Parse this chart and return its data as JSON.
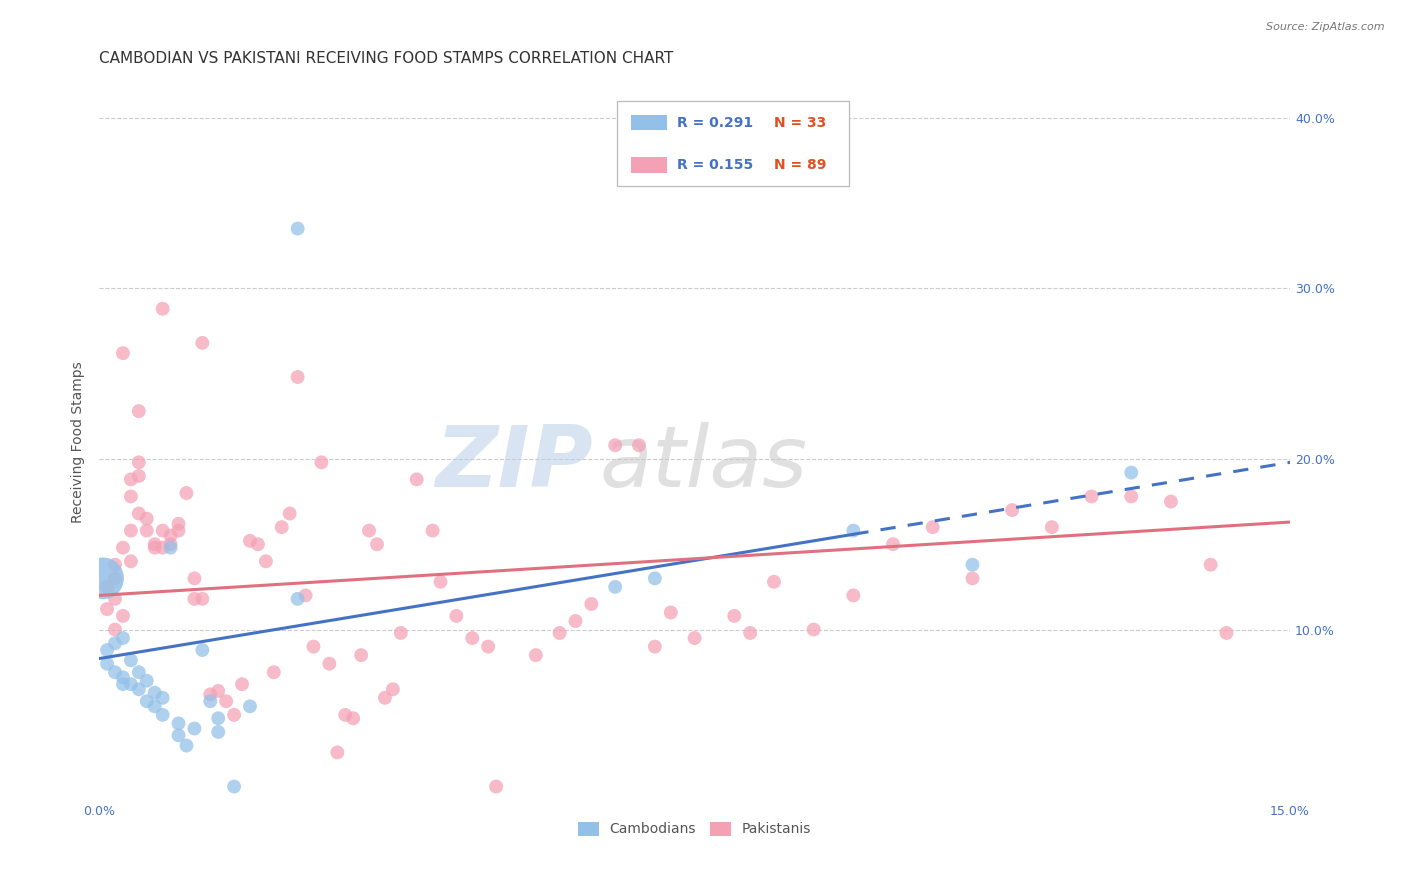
{
  "title": "CAMBODIAN VS PAKISTANI RECEIVING FOOD STAMPS CORRELATION CHART",
  "source": "Source: ZipAtlas.com",
  "ylabel": "Receiving Food Stamps",
  "xlim": [
    0.0,
    0.15
  ],
  "ylim": [
    0.0,
    0.42
  ],
  "xticks": [
    0.0,
    0.03,
    0.06,
    0.09,
    0.12,
    0.15
  ],
  "xticklabels": [
    "0.0%",
    "",
    "",
    "",
    "",
    "15.0%"
  ],
  "yticks_right": [
    0.1,
    0.2,
    0.3,
    0.4
  ],
  "ytick_labels_right": [
    "10.0%",
    "20.0%",
    "30.0%",
    "40.0%"
  ],
  "grid_color": "#cccccc",
  "background_color": "#ffffff",
  "cambodian_color": "#92c0e8",
  "pakistani_color": "#f4a0b5",
  "cambodian_line_color": "#4472c4",
  "pakistani_line_color": "#e07080",
  "cambodian_label": "Cambodians",
  "pakistani_label": "Pakistanis",
  "legend_R_cambodian": "R = 0.291",
  "legend_N_cambodian": "N = 33",
  "legend_R_pakistani": "R = 0.155",
  "legend_N_pakistani": "N = 89",
  "title_color": "#333333",
  "axis_label_color": "#555555",
  "right_axis_color": "#4472c4",
  "legend_color": "#4472c4",
  "n_color": "#e05020",
  "title_fontsize": 11,
  "axis_label_fontsize": 10,
  "tick_fontsize": 9,
  "legend_fontsize": 10,
  "marker_size": 100,
  "line_width": 2.2,
  "cam_trendline_x_break": 0.095,
  "cambodian_trendline": [
    [
      0.0,
      0.083
    ],
    [
      0.15,
      0.198
    ]
  ],
  "pakistani_trendline": [
    [
      0.0,
      0.12
    ],
    [
      0.15,
      0.163
    ]
  ],
  "cambodian_points": [
    [
      0.0005,
      0.13
    ],
    [
      0.001,
      0.088
    ],
    [
      0.001,
      0.08
    ],
    [
      0.002,
      0.092
    ],
    [
      0.002,
      0.075
    ],
    [
      0.003,
      0.072
    ],
    [
      0.003,
      0.068
    ],
    [
      0.003,
      0.095
    ],
    [
      0.004,
      0.068
    ],
    [
      0.004,
      0.082
    ],
    [
      0.005,
      0.065
    ],
    [
      0.005,
      0.075
    ],
    [
      0.006,
      0.058
    ],
    [
      0.006,
      0.07
    ],
    [
      0.007,
      0.063
    ],
    [
      0.007,
      0.055
    ],
    [
      0.008,
      0.06
    ],
    [
      0.008,
      0.05
    ],
    [
      0.009,
      0.148
    ],
    [
      0.01,
      0.038
    ],
    [
      0.01,
      0.045
    ],
    [
      0.011,
      0.032
    ],
    [
      0.012,
      0.042
    ],
    [
      0.013,
      0.088
    ],
    [
      0.014,
      0.058
    ],
    [
      0.015,
      0.048
    ],
    [
      0.015,
      0.04
    ],
    [
      0.017,
      0.008
    ],
    [
      0.019,
      0.055
    ],
    [
      0.025,
      0.335
    ],
    [
      0.025,
      0.118
    ],
    [
      0.065,
      0.125
    ],
    [
      0.07,
      0.13
    ],
    [
      0.095,
      0.158
    ],
    [
      0.11,
      0.138
    ],
    [
      0.13,
      0.192
    ]
  ],
  "cambodian_big_point": [
    0.0005,
    0.13
  ],
  "cambodian_big_size": 900,
  "pakistani_points": [
    [
      0.001,
      0.125
    ],
    [
      0.001,
      0.112
    ],
    [
      0.002,
      0.118
    ],
    [
      0.002,
      0.1
    ],
    [
      0.002,
      0.13
    ],
    [
      0.002,
      0.138
    ],
    [
      0.003,
      0.108
    ],
    [
      0.003,
      0.148
    ],
    [
      0.003,
      0.262
    ],
    [
      0.004,
      0.14
    ],
    [
      0.004,
      0.188
    ],
    [
      0.004,
      0.158
    ],
    [
      0.004,
      0.178
    ],
    [
      0.005,
      0.198
    ],
    [
      0.005,
      0.19
    ],
    [
      0.005,
      0.168
    ],
    [
      0.005,
      0.228
    ],
    [
      0.006,
      0.158
    ],
    [
      0.006,
      0.165
    ],
    [
      0.007,
      0.148
    ],
    [
      0.007,
      0.15
    ],
    [
      0.008,
      0.288
    ],
    [
      0.008,
      0.158
    ],
    [
      0.008,
      0.148
    ],
    [
      0.009,
      0.155
    ],
    [
      0.009,
      0.15
    ],
    [
      0.01,
      0.158
    ],
    [
      0.01,
      0.162
    ],
    [
      0.011,
      0.18
    ],
    [
      0.012,
      0.13
    ],
    [
      0.012,
      0.118
    ],
    [
      0.013,
      0.268
    ],
    [
      0.013,
      0.118
    ],
    [
      0.014,
      0.062
    ],
    [
      0.015,
      0.064
    ],
    [
      0.016,
      0.058
    ],
    [
      0.017,
      0.05
    ],
    [
      0.018,
      0.068
    ],
    [
      0.019,
      0.152
    ],
    [
      0.02,
      0.15
    ],
    [
      0.021,
      0.14
    ],
    [
      0.022,
      0.075
    ],
    [
      0.023,
      0.16
    ],
    [
      0.024,
      0.168
    ],
    [
      0.025,
      0.248
    ],
    [
      0.026,
      0.12
    ],
    [
      0.027,
      0.09
    ],
    [
      0.028,
      0.198
    ],
    [
      0.029,
      0.08
    ],
    [
      0.03,
      0.028
    ],
    [
      0.031,
      0.05
    ],
    [
      0.032,
      0.048
    ],
    [
      0.033,
      0.085
    ],
    [
      0.034,
      0.158
    ],
    [
      0.035,
      0.15
    ],
    [
      0.036,
      0.06
    ],
    [
      0.037,
      0.065
    ],
    [
      0.038,
      0.098
    ],
    [
      0.04,
      0.188
    ],
    [
      0.042,
      0.158
    ],
    [
      0.043,
      0.128
    ],
    [
      0.045,
      0.108
    ],
    [
      0.047,
      0.095
    ],
    [
      0.049,
      0.09
    ],
    [
      0.05,
      0.008
    ],
    [
      0.055,
      0.085
    ],
    [
      0.058,
      0.098
    ],
    [
      0.06,
      0.105
    ],
    [
      0.062,
      0.115
    ],
    [
      0.065,
      0.208
    ],
    [
      0.068,
      0.208
    ],
    [
      0.07,
      0.09
    ],
    [
      0.072,
      0.11
    ],
    [
      0.075,
      0.095
    ],
    [
      0.08,
      0.108
    ],
    [
      0.082,
      0.098
    ],
    [
      0.085,
      0.128
    ],
    [
      0.09,
      0.1
    ],
    [
      0.095,
      0.12
    ],
    [
      0.1,
      0.15
    ],
    [
      0.105,
      0.16
    ],
    [
      0.11,
      0.13
    ],
    [
      0.115,
      0.17
    ],
    [
      0.12,
      0.16
    ],
    [
      0.125,
      0.178
    ],
    [
      0.13,
      0.178
    ],
    [
      0.135,
      0.175
    ],
    [
      0.14,
      0.138
    ],
    [
      0.142,
      0.098
    ]
  ]
}
